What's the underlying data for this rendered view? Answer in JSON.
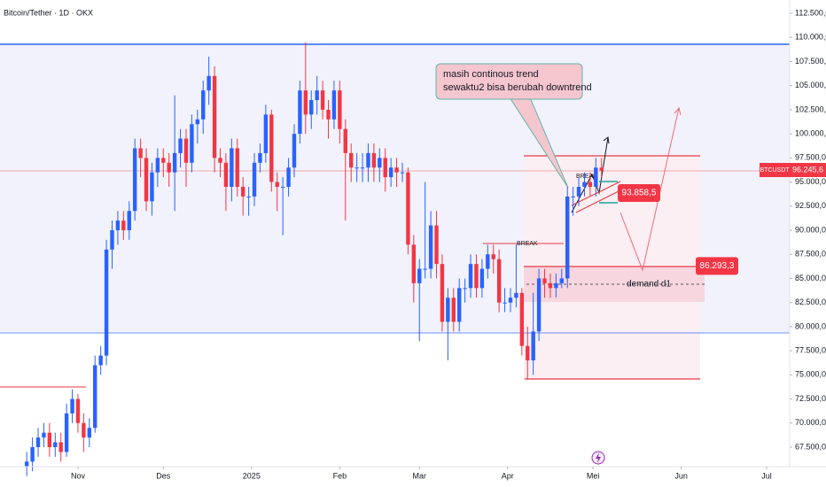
{
  "chart_data": {
    "type": "candlestick",
    "title": "Bitcoin/Tether · 1D · OKX",
    "symbol": "BTCUSDT",
    "up_color": "#2962ff",
    "down_color": "#f23645",
    "open": [
      65500,
      66000,
      67500,
      68500,
      69000,
      67500,
      68000,
      67000,
      71000,
      72500,
      70000,
      68500,
      69500,
      76000,
      77000,
      88000,
      90000,
      91000,
      90000,
      92000,
      98500,
      97500,
      93000,
      96000,
      97500,
      97000,
      96000,
      98000,
      99500,
      97000,
      101000,
      101500,
      104500,
      106000,
      97500,
      97000,
      94500,
      98500,
      94500,
      93500,
      93500,
      97000,
      98000,
      102000,
      95000,
      94500,
      94500,
      96500,
      100000,
      104500,
      102000,
      103500,
      104500,
      102500,
      101500,
      104500,
      100500,
      98000,
      96500,
      96500,
      96500,
      98000,
      96500,
      97500,
      95500,
      96500,
      96000,
      96000,
      88500,
      84500,
      86000,
      86000,
      90500,
      86500,
      80500,
      83000,
      80500,
      84000,
      84000,
      86500,
      84000,
      86000,
      87500,
      87000,
      82500,
      82500,
      83000,
      83500,
      78000,
      76500,
      79500,
      85000,
      84500,
      84000,
      84500,
      85000,
      93500,
      93500,
      94500,
      95000,
      94500,
      96500
    ],
    "high": [
      67000,
      68500,
      69500,
      70000,
      70000,
      69000,
      69000,
      72000,
      73500,
      73000,
      71000,
      70500,
      77000,
      78000,
      89000,
      91000,
      92000,
      92000,
      93000,
      99500,
      99500,
      98500,
      97000,
      98500,
      98500,
      98000,
      104000,
      100500,
      100500,
      102000,
      102500,
      105500,
      108000,
      107000,
      98500,
      98000,
      99500,
      99500,
      95500,
      94500,
      98000,
      99000,
      103000,
      102500,
      96000,
      95500,
      97500,
      101000,
      105500,
      109500,
      104500,
      106000,
      105500,
      103500,
      105500,
      105500,
      101500,
      99000,
      98000,
      98000,
      99000,
      99000,
      98500,
      98500,
      97500,
      97500,
      97000,
      96500,
      89500,
      87000,
      95000,
      92000,
      92000,
      87500,
      84000,
      84000,
      85000,
      85000,
      87500,
      87500,
      87000,
      88500,
      88500,
      88000,
      84000,
      84000,
      88500,
      84000,
      80000,
      83500,
      86000,
      86000,
      85500,
      85500,
      86000,
      94500,
      94500,
      95500,
      96000,
      96000,
      97500,
      97500
    ],
    "low": [
      64500,
      65000,
      66500,
      67500,
      66500,
      66500,
      66000,
      66500,
      70000,
      69000,
      67000,
      67500,
      69000,
      75000,
      76000,
      86000,
      88500,
      89000,
      89000,
      91000,
      95500,
      92000,
      91500,
      94500,
      95500,
      94500,
      92000,
      96500,
      94500,
      96000,
      99000,
      100000,
      103000,
      96000,
      95500,
      92000,
      93000,
      93500,
      91500,
      91500,
      92500,
      96000,
      97000,
      94000,
      92000,
      89500,
      93500,
      95500,
      99000,
      100000,
      100500,
      102000,
      101500,
      99500,
      100500,
      99000,
      91000,
      95000,
      95000,
      95000,
      95000,
      95000,
      95000,
      94000,
      94500,
      94500,
      95000,
      87500,
      82500,
      78500,
      85000,
      85000,
      85000,
      79500,
      76500,
      79500,
      79500,
      82500,
      83000,
      83000,
      83000,
      85000,
      85500,
      81500,
      81500,
      81500,
      82000,
      77000,
      74500,
      75000,
      78500,
      83000,
      83000,
      83000,
      84000,
      84000,
      91500,
      92500,
      93500,
      93500,
      93500,
      95500
    ],
    "close": [
      66000,
      67500,
      68500,
      69000,
      67500,
      68000,
      67000,
      71000,
      72500,
      70000,
      68500,
      69500,
      76000,
      77000,
      88000,
      90000,
      91000,
      90000,
      92000,
      98500,
      97500,
      93000,
      96000,
      97500,
      97000,
      96000,
      98000,
      99500,
      97000,
      101000,
      101500,
      104500,
      106000,
      97500,
      97000,
      94500,
      98500,
      94500,
      93500,
      93500,
      97000,
      98000,
      102000,
      95000,
      94500,
      94500,
      96500,
      100000,
      104500,
      102000,
      103500,
      104500,
      102500,
      101500,
      104500,
      100500,
      98000,
      96500,
      96500,
      96500,
      98000,
      96500,
      97500,
      95500,
      96500,
      96000,
      96000,
      88500,
      84500,
      86000,
      86000,
      90500,
      86500,
      80500,
      83000,
      80500,
      84000,
      84000,
      86500,
      84000,
      86000,
      87500,
      87000,
      82500,
      82500,
      83000,
      83500,
      78000,
      76500,
      79500,
      85000,
      84500,
      84000,
      84500,
      85000,
      93500,
      93500,
      94500,
      95000,
      94500,
      96500,
      96200
    ],
    "xlim": [
      -4.7,
      133.9
    ],
    "xticks": [
      {
        "value": 9,
        "label": "Nov"
      },
      {
        "value": 24,
        "label": "Des"
      },
      {
        "value": 39.5,
        "label": "2025"
      },
      {
        "value": 55,
        "label": "Feb"
      },
      {
        "value": 69,
        "label": "Mar"
      },
      {
        "value": 84.5,
        "label": "Apr"
      },
      {
        "value": 99.5,
        "label": "Mei"
      },
      {
        "value": 115,
        "label": "Jun"
      },
      {
        "value": 130,
        "label": "Jul"
      }
    ],
    "ylim": [
      65480,
      113880
    ],
    "yticks": [
      {
        "value": 67500,
        "label": "67.500,0"
      },
      {
        "value": 70000,
        "label": "70.000,0"
      },
      {
        "value": 72500,
        "label": "72.500,0"
      },
      {
        "value": 75000,
        "label": "75.000,0"
      },
      {
        "value": 77500,
        "label": "77.500,0"
      },
      {
        "value": 80000,
        "label": "80.000,0"
      },
      {
        "value": 82500,
        "label": "82.500,0"
      },
      {
        "value": 85000,
        "label": "85.000,0"
      },
      {
        "value": 87500,
        "label": "87.500,0"
      },
      {
        "value": 90000,
        "label": "90.000,0"
      },
      {
        "value": 92500,
        "label": "92.500,0"
      },
      {
        "value": 95000,
        "label": "95.000,0"
      },
      {
        "value": 97500,
        "label": "97.500,0"
      },
      {
        "value": 100000,
        "label": "100.000,0"
      },
      {
        "value": 102500,
        "label": "102.500,0"
      },
      {
        "value": 105000,
        "label": "105.000,0"
      },
      {
        "value": 107500,
        "label": "107.500,0"
      },
      {
        "value": 110000,
        "label": "110.000,0"
      },
      {
        "value": 112500,
        "label": "112.500,0"
      }
    ],
    "last_price": {
      "value": 96245.6,
      "label": "96.245,6"
    },
    "price_labels": [
      {
        "value": 93858.5,
        "label": "93.858,5"
      },
      {
        "value": 86293.3,
        "label": "86.293,3"
      }
    ],
    "callout": [
      "masih continous trend",
      "sewaktu2 bisa berubah downtrend"
    ],
    "break_labels": [
      "BREAK",
      "BREAK"
    ],
    "zone_label": "demand d1"
  }
}
